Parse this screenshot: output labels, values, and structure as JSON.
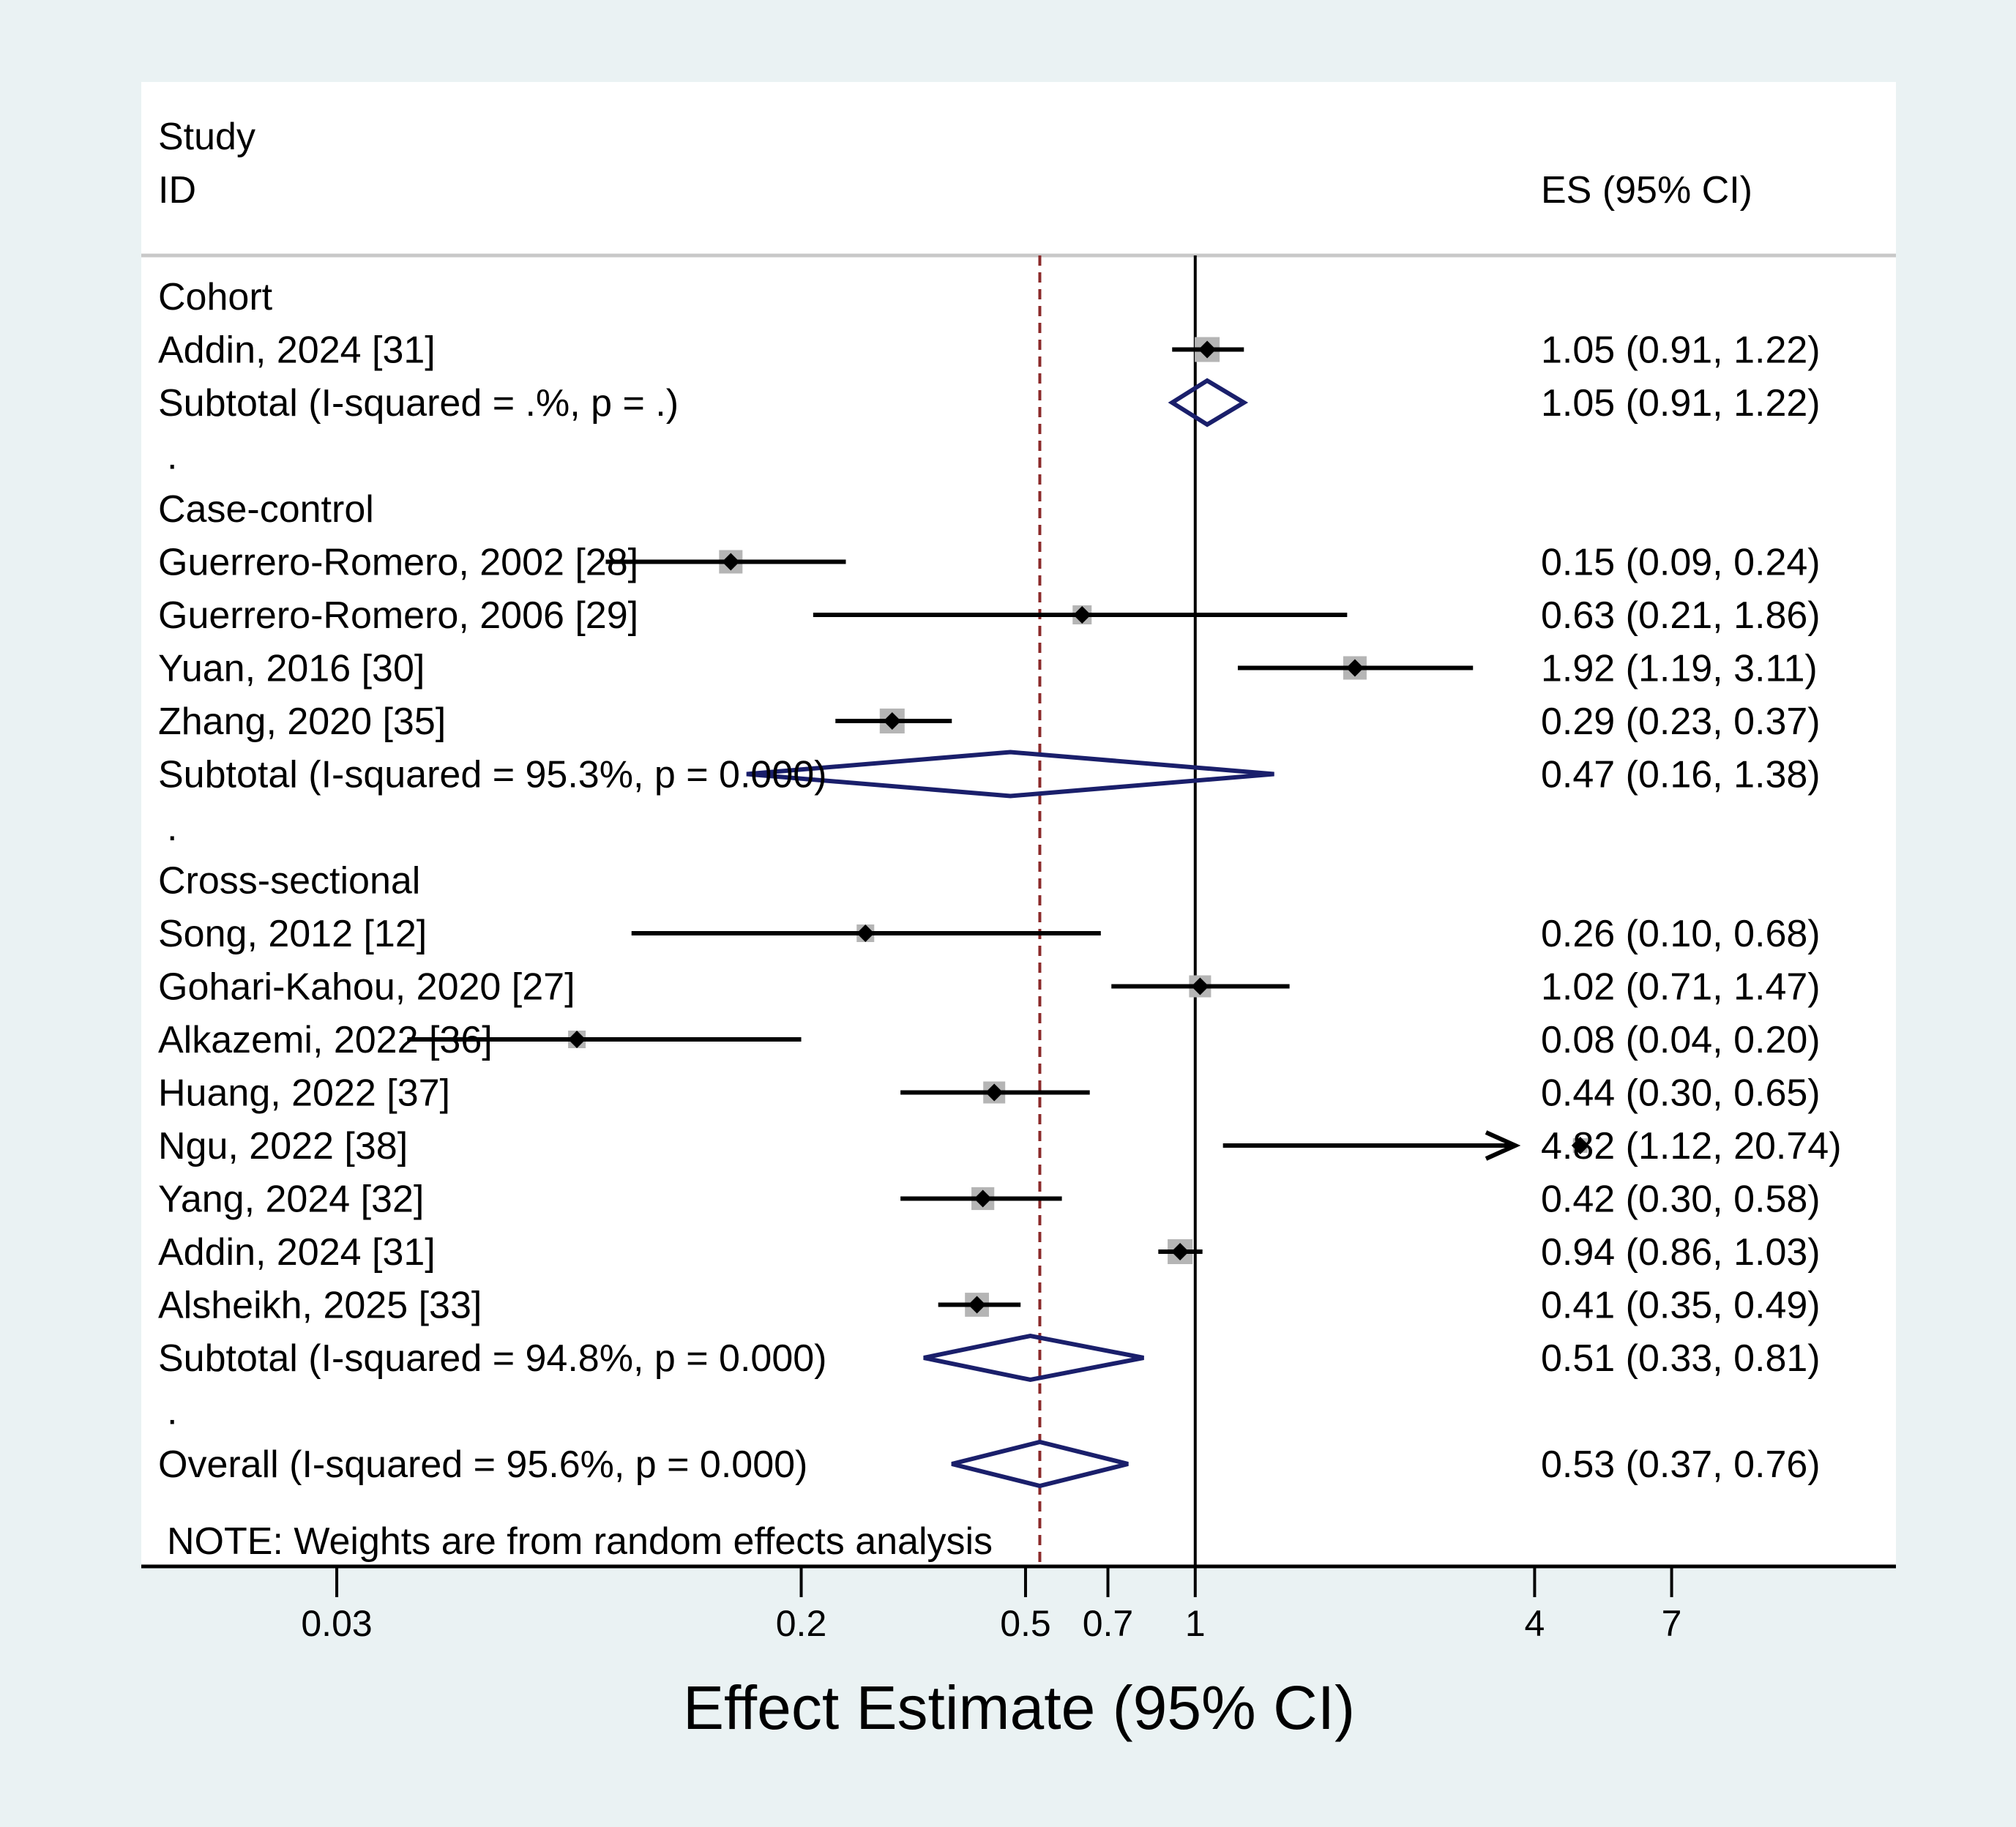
{
  "chart_data": {
    "type": "forest",
    "header": {
      "study_line1": "Study",
      "study_line2": "ID",
      "es_label": "ES (95% CI)"
    },
    "xlabel": "Effect Estimate (95% CI)",
    "x_scale": "log",
    "xlim": [
      0.0135,
      17.5
    ],
    "x_ticks": [
      {
        "value": 0.03,
        "label": "0.03"
      },
      {
        "value": 0.2,
        "label": "0.2"
      },
      {
        "value": 0.5,
        "label": "0.5"
      },
      {
        "value": 0.7,
        "label": "0.7"
      },
      {
        "value": 1,
        "label": "1"
      },
      {
        "value": 4,
        "label": "4"
      },
      {
        "value": 7,
        "label": "7"
      }
    ],
    "null_line": 1,
    "overall_line": 0.53,
    "note": "NOTE: Weights are from random effects analysis",
    "colors": {
      "background": "#eaf2f3",
      "plot_bg": "#ffffff",
      "diamond": "#1a1f6b",
      "overall_line": "#8b2a2a",
      "weight_box": "#b5b5b5",
      "rule": "#c8c8c8"
    },
    "rows": [
      {
        "kind": "group",
        "label": "Cohort"
      },
      {
        "kind": "study",
        "label": "Addin, 2024 [31]",
        "es": 1.05,
        "lo": 0.91,
        "hi": 1.22,
        "weight": 0.85,
        "es_text": "1.05 (0.91, 1.22)"
      },
      {
        "kind": "subtotal",
        "label": "Subtotal  (I-squared = .%, p = .)",
        "es": 1.05,
        "lo": 0.91,
        "hi": 1.22,
        "es_text": "1.05 (0.91, 1.22)"
      },
      {
        "kind": "spacer",
        "label": "."
      },
      {
        "kind": "group",
        "label": "Case-control"
      },
      {
        "kind": "study",
        "label": "Guerrero-Romero, 2002 [28]",
        "es": 0.15,
        "lo": 0.09,
        "hi": 0.24,
        "weight": 0.8,
        "es_text": "0.15 (0.09, 0.24)"
      },
      {
        "kind": "study",
        "label": "Guerrero-Romero, 2006 [29]",
        "es": 0.63,
        "lo": 0.21,
        "hi": 1.86,
        "weight": 0.65,
        "es_text": "0.63 (0.21, 1.86)"
      },
      {
        "kind": "study",
        "label": "Yuan, 2016 [30]",
        "es": 1.92,
        "lo": 1.19,
        "hi": 3.11,
        "weight": 0.8,
        "es_text": "1.92 (1.19, 3.11)"
      },
      {
        "kind": "study",
        "label": "Zhang, 2020 [35]",
        "es": 0.29,
        "lo": 0.23,
        "hi": 0.37,
        "weight": 0.85,
        "es_text": "0.29 (0.23, 0.37)"
      },
      {
        "kind": "subtotal",
        "label": "Subtotal  (I-squared = 95.3%, p = 0.000)",
        "es": 0.47,
        "lo": 0.16,
        "hi": 1.38,
        "es_text": "0.47 (0.16, 1.38)"
      },
      {
        "kind": "spacer",
        "label": "."
      },
      {
        "kind": "group",
        "label": "Cross-sectional"
      },
      {
        "kind": "study",
        "label": "Song, 2012 [12]",
        "es": 0.26,
        "lo": 0.1,
        "hi": 0.68,
        "weight": 0.6,
        "es_text": "0.26 (0.10, 0.68)"
      },
      {
        "kind": "study",
        "label": "Gohari-Kahou, 2020 [27]",
        "es": 1.02,
        "lo": 0.71,
        "hi": 1.47,
        "weight": 0.75,
        "es_text": "1.02 (0.71, 1.47)"
      },
      {
        "kind": "study",
        "label": "Alkazemi, 2022 [36]",
        "es": 0.08,
        "lo": 0.04,
        "hi": 0.2,
        "weight": 0.6,
        "es_text": "0.08 (0.04, 0.20)"
      },
      {
        "kind": "study",
        "label": "Huang, 2022 [37]",
        "es": 0.44,
        "lo": 0.3,
        "hi": 0.65,
        "weight": 0.75,
        "es_text": "0.44 (0.30, 0.65)"
      },
      {
        "kind": "study",
        "label": "Ngu, 2022 [38]",
        "es": 4.82,
        "lo": 1.12,
        "hi": 20.74,
        "weight": 0.5,
        "arrow": true,
        "es_text": "4.82 (1.12, 20.74)"
      },
      {
        "kind": "study",
        "label": "Yang, 2024 [32]",
        "es": 0.42,
        "lo": 0.3,
        "hi": 0.58,
        "weight": 0.78,
        "es_text": "0.42 (0.30, 0.58)"
      },
      {
        "kind": "study",
        "label": "Addin, 2024 [31]",
        "es": 0.94,
        "lo": 0.86,
        "hi": 1.03,
        "weight": 0.85,
        "es_text": "0.94 (0.86, 1.03)"
      },
      {
        "kind": "study",
        "label": "Alsheikh, 2025 [33]",
        "es": 0.41,
        "lo": 0.35,
        "hi": 0.49,
        "weight": 0.82,
        "es_text": "0.41 (0.35, 0.49)"
      },
      {
        "kind": "subtotal",
        "label": "Subtotal  (I-squared = 94.8%, p = 0.000)",
        "es": 0.51,
        "lo": 0.33,
        "hi": 0.81,
        "es_text": "0.51 (0.33, 0.81)"
      },
      {
        "kind": "spacer",
        "label": "."
      },
      {
        "kind": "overall",
        "label": "Overall  (I-squared = 95.6%, p = 0.000)",
        "es": 0.53,
        "lo": 0.37,
        "hi": 0.76,
        "es_text": "0.53 (0.37, 0.76)"
      }
    ]
  }
}
